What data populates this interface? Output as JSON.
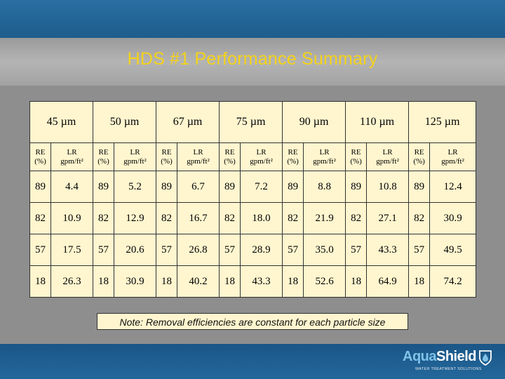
{
  "title": "HDS #1 Performance Summary",
  "columns": [
    "45 µm",
    "50 µm",
    "67 µm",
    "75 µm",
    "90 µm",
    "110 µm",
    "125 µm"
  ],
  "sub_headers": {
    "re_line1": "RE",
    "re_line2": "(%)",
    "lr_line1": "LR",
    "lr_line2": "gpm/ft²"
  },
  "rows": [
    [
      "89",
      "4.4",
      "89",
      "5.2",
      "89",
      "6.7",
      "89",
      "7.2",
      "89",
      "8.8",
      "89",
      "10.8",
      "89",
      "12.4"
    ],
    [
      "82",
      "10.9",
      "82",
      "12.9",
      "82",
      "16.7",
      "82",
      "18.0",
      "82",
      "21.9",
      "82",
      "27.1",
      "82",
      "30.9"
    ],
    [
      "57",
      "17.5",
      "57",
      "20.6",
      "57",
      "26.8",
      "57",
      "28.9",
      "57",
      "35.0",
      "57",
      "43.3",
      "57",
      "49.5"
    ],
    [
      "18",
      "26.3",
      "18",
      "30.9",
      "18",
      "40.2",
      "18",
      "43.3",
      "18",
      "52.6",
      "18",
      "64.9",
      "18",
      "74.2"
    ]
  ],
  "note": "Note: Removal efficiencies are constant for each particle size",
  "logo": {
    "aqua": "Aqua",
    "shield": "Shield",
    "tagline": "WATER TREATMENT SOLUTIONS"
  }
}
